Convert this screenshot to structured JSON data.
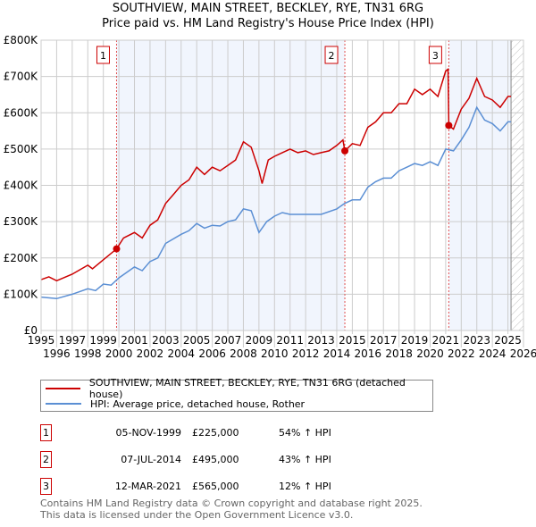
{
  "chart_data": {
    "type": "line",
    "title": "SOUTHVIEW, MAIN STREET, BECKLEY, RYE, TN31 6RG",
    "subtitle": "Price paid vs. HM Land Registry's House Price Index (HPI)",
    "xlim": [
      1995,
      2026
    ],
    "ylim": [
      0,
      800000
    ],
    "y_ticks": [
      {
        "v": 0,
        "label": "£0"
      },
      {
        "v": 100000,
        "label": "£100K"
      },
      {
        "v": 200000,
        "label": "£200K"
      },
      {
        "v": 300000,
        "label": "£300K"
      },
      {
        "v": 400000,
        "label": "£400K"
      },
      {
        "v": 500000,
        "label": "£500K"
      },
      {
        "v": 600000,
        "label": "£600K"
      },
      {
        "v": 700000,
        "label": "£700K"
      },
      {
        "v": 800000,
        "label": "£800K"
      }
    ],
    "x_ticks": [
      "1995",
      "1996",
      "1997",
      "1998",
      "1999",
      "2000",
      "2001",
      "2002",
      "2003",
      "2004",
      "2005",
      "2006",
      "2007",
      "2008",
      "2009",
      "2010",
      "2011",
      "2012",
      "2013",
      "2014",
      "2015",
      "2016",
      "2017",
      "2018",
      "2019",
      "2020",
      "2021",
      "2022",
      "2023",
      "2024",
      "2025",
      "2026"
    ],
    "grid": true,
    "forecast_hatch_from": 2025.2,
    "shaded_ranges": [
      [
        1999.85,
        2014.52
      ],
      [
        2021.2,
        2025.2
      ]
    ],
    "series": [
      {
        "name": "SOUTHVIEW, MAIN STREET, BECKLEY, RYE, TN31 6RG (detached house)",
        "color": "#cc0000",
        "x": [
          1995,
          1995.5,
          1996,
          1997,
          1998,
          1998.3,
          1999,
          1999.85,
          2000.3,
          2001,
          2001.5,
          2002,
          2002.5,
          2003,
          2003.5,
          2004,
          2004.5,
          2005,
          2005.5,
          2006,
          2006.5,
          2007,
          2007.5,
          2008,
          2008.5,
          2009,
          2009.2,
          2009.6,
          2010,
          2010.5,
          2011,
          2011.5,
          2012,
          2012.5,
          2013,
          2013.5,
          2014,
          2014.4,
          2014.52,
          2015,
          2015.5,
          2016,
          2016.5,
          2017,
          2017.5,
          2018,
          2018.5,
          2019,
          2019.5,
          2020,
          2020.5,
          2021,
          2021.15,
          2021.2,
          2021.5,
          2022,
          2022.5,
          2023,
          2023.5,
          2024,
          2024.5,
          2025,
          2025.2
        ],
        "y": [
          140000,
          148000,
          137000,
          155000,
          180000,
          170000,
          195000,
          225000,
          255000,
          270000,
          255000,
          290000,
          305000,
          350000,
          375000,
          400000,
          415000,
          450000,
          430000,
          450000,
          440000,
          455000,
          470000,
          520000,
          505000,
          440000,
          405000,
          470000,
          480000,
          490000,
          500000,
          490000,
          495000,
          485000,
          490000,
          495000,
          510000,
          525000,
          495000,
          515000,
          510000,
          560000,
          575000,
          600000,
          600000,
          625000,
          625000,
          665000,
          650000,
          665000,
          645000,
          715000,
          720000,
          565000,
          555000,
          610000,
          640000,
          695000,
          645000,
          635000,
          615000,
          645000,
          645000
        ]
      },
      {
        "name": "HPI: Average price, detached house, Rother",
        "color": "#5b8fd4",
        "x": [
          1995,
          1996,
          1997,
          1998,
          1998.5,
          1999,
          1999.5,
          2000,
          2001,
          2001.5,
          2002,
          2002.5,
          2003,
          2004,
          2004.5,
          2005,
          2005.5,
          2006,
          2006.5,
          2007,
          2007.5,
          2008,
          2008.5,
          2009,
          2009.5,
          2010,
          2010.5,
          2011,
          2012,
          2013,
          2014,
          2014.5,
          2015,
          2015.5,
          2016,
          2016.5,
          2017,
          2017.5,
          2018,
          2018.5,
          2019,
          2019.5,
          2020,
          2020.5,
          2021,
          2021.5,
          2022,
          2022.5,
          2023,
          2023.5,
          2024,
          2024.5,
          2025,
          2025.2
        ],
        "y": [
          92000,
          88000,
          100000,
          115000,
          110000,
          128000,
          125000,
          145000,
          175000,
          165000,
          190000,
          200000,
          240000,
          265000,
          275000,
          295000,
          282000,
          290000,
          288000,
          300000,
          305000,
          335000,
          330000,
          270000,
          300000,
          315000,
          325000,
          320000,
          320000,
          320000,
          335000,
          350000,
          360000,
          360000,
          395000,
          410000,
          420000,
          420000,
          440000,
          450000,
          460000,
          455000,
          465000,
          455000,
          500000,
          495000,
          525000,
          560000,
          615000,
          580000,
          570000,
          550000,
          575000,
          575000
        ]
      }
    ],
    "annotations": [
      {
        "label": "1",
        "x": 1999.85,
        "y": 225000
      },
      {
        "label": "2",
        "x": 2014.52,
        "y": 495000
      },
      {
        "label": "3",
        "x": 2021.2,
        "y": 565000
      }
    ]
  },
  "legend": {
    "items": [
      {
        "label": "SOUTHVIEW, MAIN STREET, BECKLEY, RYE, TN31 6RG (detached house)",
        "color": "#cc0000"
      },
      {
        "label": "HPI: Average price, detached house, Rother",
        "color": "#5b8fd4"
      }
    ]
  },
  "sales": [
    {
      "num": "1",
      "date": "05-NOV-1999",
      "price": "£225,000",
      "hpi": "54% ↑ HPI"
    },
    {
      "num": "2",
      "date": "07-JUL-2014",
      "price": "£495,000",
      "hpi": "43% ↑ HPI"
    },
    {
      "num": "3",
      "date": "12-MAR-2021",
      "price": "£565,000",
      "hpi": "12% ↑ HPI"
    }
  ],
  "footer": {
    "line1": "Contains HM Land Registry data © Crown copyright and database right 2025.",
    "line2": "This data is licensed under the Open Government Licence v3.0."
  }
}
